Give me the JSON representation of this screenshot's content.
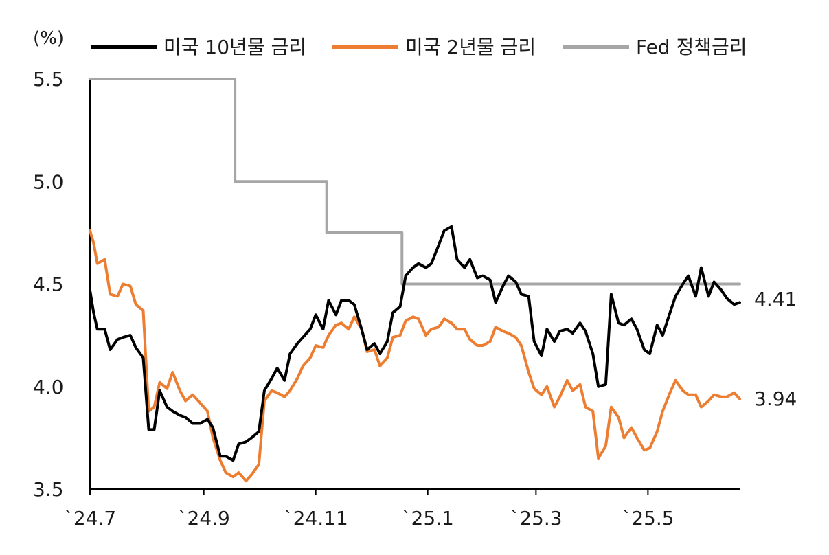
{
  "chart_data": {
    "type": "line",
    "unit_label": "(%)",
    "ylim": [
      3.5,
      5.5
    ],
    "yticks": [
      "5.5",
      "5.0",
      "4.5",
      "4.0",
      "3.5"
    ],
    "yticks_values": [
      5.5,
      5.0,
      4.5,
      4.0,
      3.5
    ],
    "xticks": [
      "`24.7",
      "`24.9",
      "`24.11",
      "`25.1",
      "`25.3",
      "`25.5"
    ],
    "xticks_values": [
      "2024-07-01",
      "2024-09-01",
      "2024-11-01",
      "2025-01-01",
      "2025-03-01",
      "2025-05-01"
    ],
    "xlim": [
      "2024-07-01",
      "2025-06-20"
    ],
    "legend_position": "top",
    "grid": false,
    "series": [
      {
        "name": "미국 10년물 금리",
        "color": "#000000",
        "x": [
          "2024-07-01",
          "2024-07-03",
          "2024-07-05",
          "2024-07-09",
          "2024-07-12",
          "2024-07-16",
          "2024-07-19",
          "2024-07-23",
          "2024-07-26",
          "2024-07-30",
          "2024-08-02",
          "2024-08-05",
          "2024-08-08",
          "2024-08-12",
          "2024-08-15",
          "2024-08-19",
          "2024-08-22",
          "2024-08-26",
          "2024-08-30",
          "2024-09-03",
          "2024-09-06",
          "2024-09-10",
          "2024-09-13",
          "2024-09-17",
          "2024-09-20",
          "2024-09-24",
          "2024-09-27",
          "2024-10-01",
          "2024-10-04",
          "2024-10-08",
          "2024-10-11",
          "2024-10-15",
          "2024-10-18",
          "2024-10-22",
          "2024-10-25",
          "2024-10-29",
          "2024-11-01",
          "2024-11-05",
          "2024-11-08",
          "2024-11-12",
          "2024-11-15",
          "2024-11-19",
          "2024-11-22",
          "2024-11-26",
          "2024-11-29",
          "2024-12-03",
          "2024-12-06",
          "2024-12-10",
          "2024-12-13",
          "2024-12-17",
          "2024-12-20",
          "2024-12-24",
          "2024-12-27",
          "2024-12-31",
          "2025-01-03",
          "2025-01-07",
          "2025-01-10",
          "2025-01-14",
          "2025-01-17",
          "2025-01-21",
          "2025-01-24",
          "2025-01-28",
          "2025-01-31",
          "2025-02-04",
          "2025-02-07",
          "2025-02-11",
          "2025-02-14",
          "2025-02-18",
          "2025-02-21",
          "2025-02-25",
          "2025-02-28",
          "2025-03-04",
          "2025-03-07",
          "2025-03-11",
          "2025-03-14",
          "2025-03-18",
          "2025-03-21",
          "2025-03-25",
          "2025-03-28",
          "2025-04-01",
          "2025-04-04",
          "2025-04-08",
          "2025-04-11",
          "2025-04-15",
          "2025-04-18",
          "2025-04-22",
          "2025-04-25",
          "2025-04-29",
          "2025-05-02",
          "2025-05-06",
          "2025-05-09",
          "2025-05-13",
          "2025-05-16",
          "2025-05-20",
          "2025-05-23",
          "2025-05-27",
          "2025-05-30",
          "2025-06-03",
          "2025-06-06",
          "2025-06-10",
          "2025-06-13",
          "2025-06-17",
          "2025-06-20"
        ],
        "values": [
          4.47,
          4.36,
          4.28,
          4.28,
          4.18,
          4.23,
          4.24,
          4.25,
          4.19,
          4.14,
          3.79,
          3.79,
          3.98,
          3.9,
          3.88,
          3.86,
          3.85,
          3.82,
          3.82,
          3.84,
          3.8,
          3.66,
          3.66,
          3.64,
          3.72,
          3.73,
          3.75,
          3.78,
          3.98,
          4.04,
          4.09,
          4.03,
          4.16,
          4.21,
          4.24,
          4.28,
          4.35,
          4.28,
          4.42,
          4.35,
          4.42,
          4.42,
          4.4,
          4.28,
          4.18,
          4.21,
          4.16,
          4.22,
          4.36,
          4.39,
          4.54,
          4.58,
          4.6,
          4.58,
          4.6,
          4.69,
          4.76,
          4.78,
          4.62,
          4.58,
          4.62,
          4.53,
          4.54,
          4.52,
          4.41,
          4.49,
          4.54,
          4.51,
          4.45,
          4.44,
          4.22,
          4.15,
          4.28,
          4.22,
          4.27,
          4.28,
          4.26,
          4.31,
          4.27,
          4.16,
          4.0,
          4.01,
          4.45,
          4.31,
          4.3,
          4.33,
          4.28,
          4.18,
          4.16,
          4.3,
          4.25,
          4.36,
          4.44,
          4.5,
          4.54,
          4.44,
          4.58,
          4.44,
          4.51,
          4.47,
          4.43,
          4.4,
          4.41
        ],
        "end_label": "4.41"
      },
      {
        "name": "미국 2년물 금리",
        "color": "#ED7D31",
        "x": [
          "2024-07-01",
          "2024-07-03",
          "2024-07-05",
          "2024-07-09",
          "2024-07-12",
          "2024-07-16",
          "2024-07-19",
          "2024-07-23",
          "2024-07-26",
          "2024-07-30",
          "2024-08-02",
          "2024-08-05",
          "2024-08-08",
          "2024-08-12",
          "2024-08-15",
          "2024-08-19",
          "2024-08-22",
          "2024-08-26",
          "2024-08-30",
          "2024-09-03",
          "2024-09-06",
          "2024-09-10",
          "2024-09-13",
          "2024-09-17",
          "2024-09-20",
          "2024-09-24",
          "2024-09-27",
          "2024-10-01",
          "2024-10-04",
          "2024-10-08",
          "2024-10-11",
          "2024-10-15",
          "2024-10-18",
          "2024-10-22",
          "2024-10-25",
          "2024-10-29",
          "2024-11-01",
          "2024-11-05",
          "2024-11-08",
          "2024-11-12",
          "2024-11-15",
          "2024-11-19",
          "2024-11-22",
          "2024-11-26",
          "2024-11-29",
          "2024-12-03",
          "2024-12-06",
          "2024-12-10",
          "2024-12-13",
          "2024-12-17",
          "2024-12-20",
          "2024-12-24",
          "2024-12-27",
          "2024-12-31",
          "2025-01-03",
          "2025-01-07",
          "2025-01-10",
          "2025-01-14",
          "2025-01-17",
          "2025-01-21",
          "2025-01-24",
          "2025-01-28",
          "2025-01-31",
          "2025-02-04",
          "2025-02-07",
          "2025-02-11",
          "2025-02-14",
          "2025-02-18",
          "2025-02-21",
          "2025-02-25",
          "2025-02-28",
          "2025-03-04",
          "2025-03-07",
          "2025-03-11",
          "2025-03-14",
          "2025-03-18",
          "2025-03-21",
          "2025-03-25",
          "2025-03-28",
          "2025-04-01",
          "2025-04-04",
          "2025-04-08",
          "2025-04-11",
          "2025-04-15",
          "2025-04-18",
          "2025-04-22",
          "2025-04-25",
          "2025-04-29",
          "2025-05-02",
          "2025-05-06",
          "2025-05-09",
          "2025-05-13",
          "2025-05-16",
          "2025-05-20",
          "2025-05-23",
          "2025-05-27",
          "2025-05-30",
          "2025-06-03",
          "2025-06-06",
          "2025-06-10",
          "2025-06-13",
          "2025-06-17",
          "2025-06-20"
        ],
        "values": [
          4.76,
          4.7,
          4.6,
          4.62,
          4.45,
          4.44,
          4.5,
          4.49,
          4.4,
          4.37,
          3.88,
          3.9,
          4.02,
          3.99,
          4.07,
          3.98,
          3.93,
          3.96,
          3.92,
          3.88,
          3.75,
          3.64,
          3.58,
          3.56,
          3.58,
          3.54,
          3.57,
          3.62,
          3.93,
          3.98,
          3.97,
          3.95,
          3.98,
          4.04,
          4.1,
          4.14,
          4.2,
          4.19,
          4.25,
          4.3,
          4.31,
          4.28,
          4.34,
          4.28,
          4.17,
          4.18,
          4.1,
          4.14,
          4.24,
          4.25,
          4.32,
          4.34,
          4.33,
          4.25,
          4.28,
          4.29,
          4.33,
          4.31,
          4.28,
          4.28,
          4.23,
          4.2,
          4.2,
          4.22,
          4.29,
          4.27,
          4.26,
          4.24,
          4.2,
          4.07,
          3.99,
          3.96,
          4.0,
          3.9,
          3.95,
          4.03,
          3.98,
          4.01,
          3.9,
          3.88,
          3.65,
          3.71,
          3.9,
          3.85,
          3.75,
          3.8,
          3.75,
          3.69,
          3.7,
          3.78,
          3.88,
          3.97,
          4.03,
          3.98,
          3.96,
          3.96,
          3.9,
          3.93,
          3.96,
          3.95,
          3.95,
          3.97,
          3.94
        ],
        "end_label": "3.94"
      },
      {
        "name": "Fed 정책금리",
        "color": "#A6A6A6",
        "step": true,
        "x": [
          "2024-07-01",
          "2024-09-18",
          "2024-11-07",
          "2024-12-18",
          "2025-06-20"
        ],
        "values": [
          5.5,
          5.0,
          4.75,
          4.5,
          4.5
        ]
      }
    ]
  }
}
